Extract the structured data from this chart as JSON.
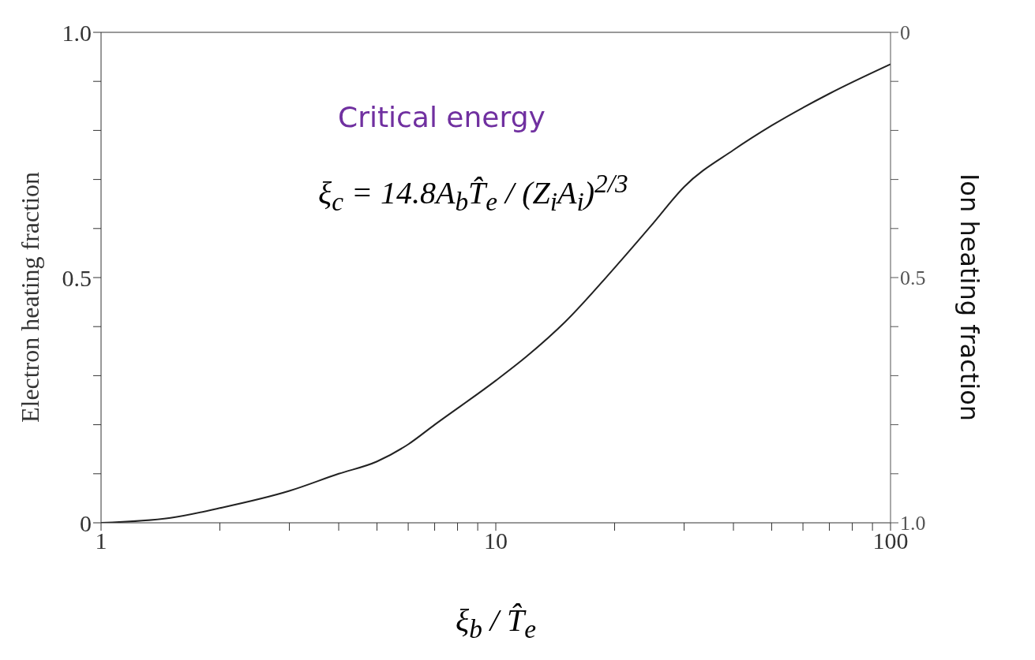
{
  "chart_data": {
    "type": "line",
    "xlabel": "ξ$_{b}$ / T̂$_{e}$",
    "ylabel": "Electron heating fraction",
    "y2label": "Ion heating fraction",
    "annotations": [
      "Critical energy",
      "ξ$_{c}$ = 14.8A$_{b}$T̂$_{e}$ / (Z$_{i}$A$_{i}$)$^{2/3}$"
    ],
    "log": "x",
    "grid": false,
    "marker": "none",
    "line_style": "solid",
    "xlim": [
      1,
      100
    ],
    "xticks": [
      1,
      {
        "value": 2,
        "label": null
      },
      {
        "value": 3,
        "label": null
      },
      {
        "value": 4,
        "label": null
      },
      {
        "value": 5,
        "label": null
      },
      {
        "value": 6,
        "label": null
      },
      {
        "value": 7,
        "label": null
      },
      {
        "value": 8,
        "label": null
      },
      {
        "value": 9,
        "label": null
      },
      10,
      {
        "value": 20,
        "label": null
      },
      {
        "value": 30,
        "label": null
      },
      {
        "value": 40,
        "label": null
      },
      {
        "value": 50,
        "label": null
      },
      {
        "value": 60,
        "label": null
      },
      {
        "value": 70,
        "label": null
      },
      {
        "value": 80,
        "label": null
      },
      {
        "value": 90,
        "label": null
      },
      100
    ],
    "ylim": [
      0,
      1
    ],
    "yticks": [
      0,
      {
        "value": 0.1,
        "label": null
      },
      {
        "value": 0.2,
        "label": null
      },
      {
        "value": 0.3,
        "label": null
      },
      {
        "value": 0.4,
        "label": null
      },
      0.5,
      {
        "value": 0.6,
        "label": null
      },
      {
        "value": 0.7,
        "label": null
      },
      {
        "value": 0.8,
        "label": null
      },
      {
        "value": 0.9,
        "label": null
      },
      {
        "value": 1,
        "label": "1.0"
      }
    ],
    "y2lim": [
      1,
      0
    ],
    "y2ticks": [
      0,
      {
        "value": 0.1,
        "label": null
      },
      {
        "value": 0.2,
        "label": null
      },
      {
        "value": 0.3,
        "label": null
      },
      {
        "value": 0.4,
        "label": null
      },
      0.5,
      {
        "value": 0.6,
        "label": null
      },
      {
        "value": 0.7,
        "label": null
      },
      {
        "value": 0.8,
        "label": null
      },
      {
        "value": 0.9,
        "label": null
      },
      {
        "value": 1,
        "label": "1.0"
      }
    ],
    "x": [
      1,
      1.5,
      2,
      3,
      4,
      5,
      6,
      7,
      10,
      12,
      15,
      20,
      25,
      30,
      40,
      50,
      70,
      100
    ],
    "series": [
      {
        "color": "#222222",
        "values": [
          0,
          0.01,
          0.03,
          0.065,
          0.1,
          0.125,
          0.16,
          0.2,
          0.29,
          0.34,
          0.41,
          0.52,
          0.61,
          0.685,
          0.76,
          0.81,
          0.875,
          0.935
        ]
      }
    ]
  }
}
